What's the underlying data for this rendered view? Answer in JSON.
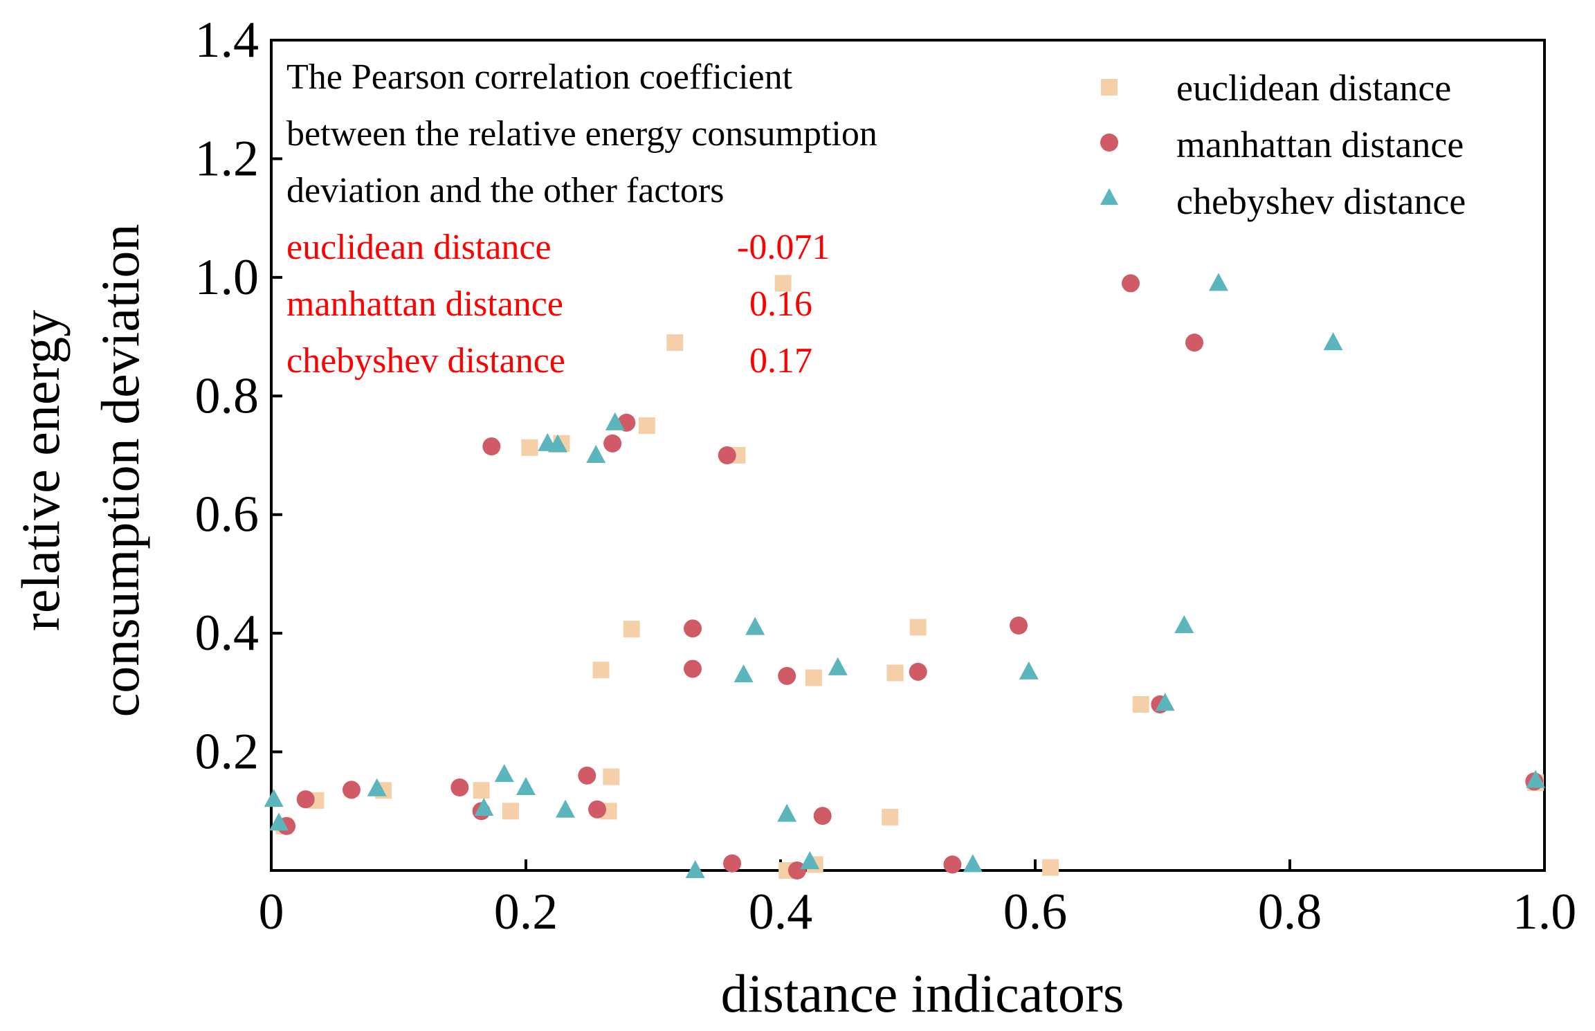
{
  "chart_data": {
    "type": "scatter",
    "title": "",
    "xlabel": "distance indicators",
    "ylabel_lines": [
      "relative energy",
      "consumption deviation"
    ],
    "xlim": [
      0,
      1.0
    ],
    "ylim": [
      0,
      1.4
    ],
    "x_ticks": [
      0,
      0.2,
      0.4,
      0.6,
      0.8,
      1.0
    ],
    "x_tick_labels": [
      "0",
      "0.2",
      "0.4",
      "0.6",
      "0.8",
      "1.0"
    ],
    "y_ticks": [
      0.2,
      0.4,
      0.6,
      0.8,
      1.0,
      1.2,
      1.4
    ],
    "y_tick_labels": [
      "0.2",
      "0.4",
      "0.6",
      "0.8",
      "1.0",
      "1.2",
      "1.4"
    ],
    "grid": false,
    "legend_position": "top-right",
    "series": [
      {
        "name": "euclidean distance",
        "marker": "square",
        "color": "#f5cfa7",
        "points": [
          [
            0.01,
            0.075
          ],
          [
            0.035,
            0.118
          ],
          [
            0.088,
            0.135
          ],
          [
            0.165,
            0.135
          ],
          [
            0.188,
            0.1
          ],
          [
            0.203,
            0.713
          ],
          [
            0.228,
            0.72
          ],
          [
            0.259,
            0.338
          ],
          [
            0.265,
            0.1
          ],
          [
            0.267,
            0.158
          ],
          [
            0.283,
            0.407
          ],
          [
            0.295,
            0.75
          ],
          [
            0.317,
            0.89
          ],
          [
            0.366,
            0.7
          ],
          [
            0.402,
            0.99
          ],
          [
            0.405,
            0.0
          ],
          [
            0.426,
            0.325
          ],
          [
            0.427,
            0.01
          ],
          [
            0.486,
            0.09
          ],
          [
            0.49,
            0.333
          ],
          [
            0.508,
            0.41
          ],
          [
            0.612,
            0.005
          ],
          [
            0.683,
            0.28
          ],
          [
            0.993,
            0.148
          ]
        ]
      },
      {
        "name": "manhattan distance",
        "marker": "circle",
        "color": "#d05b66",
        "points": [
          [
            0.012,
            0.075
          ],
          [
            0.027,
            0.12
          ],
          [
            0.063,
            0.136
          ],
          [
            0.148,
            0.14
          ],
          [
            0.165,
            0.1
          ],
          [
            0.173,
            0.715
          ],
          [
            0.248,
            0.16
          ],
          [
            0.256,
            0.103
          ],
          [
            0.268,
            0.72
          ],
          [
            0.279,
            0.755
          ],
          [
            0.331,
            0.408
          ],
          [
            0.331,
            0.34
          ],
          [
            0.358,
            0.7
          ],
          [
            0.362,
            0.012
          ],
          [
            0.405,
            0.328
          ],
          [
            0.413,
            0.0
          ],
          [
            0.433,
            0.092
          ],
          [
            0.508,
            0.335
          ],
          [
            0.535,
            0.01
          ],
          [
            0.587,
            0.413
          ],
          [
            0.675,
            0.99
          ],
          [
            0.698,
            0.28
          ],
          [
            0.725,
            0.89
          ],
          [
            0.992,
            0.15
          ]
        ]
      },
      {
        "name": "chebyshev distance",
        "marker": "triangle",
        "color": "#5ab5bd",
        "points": [
          [
            0.002,
            0.12
          ],
          [
            0.006,
            0.08
          ],
          [
            0.083,
            0.138
          ],
          [
            0.167,
            0.105
          ],
          [
            0.183,
            0.162
          ],
          [
            0.2,
            0.14
          ],
          [
            0.217,
            0.72
          ],
          [
            0.225,
            0.718
          ],
          [
            0.231,
            0.102
          ],
          [
            0.255,
            0.7
          ],
          [
            0.27,
            0.755
          ],
          [
            0.333,
            0.0
          ],
          [
            0.371,
            0.33
          ],
          [
            0.38,
            0.41
          ],
          [
            0.405,
            0.095
          ],
          [
            0.423,
            0.015
          ],
          [
            0.445,
            0.342
          ],
          [
            0.551,
            0.01
          ],
          [
            0.595,
            0.335
          ],
          [
            0.702,
            0.282
          ],
          [
            0.717,
            0.413
          ],
          [
            0.744,
            0.99
          ],
          [
            0.834,
            0.89
          ],
          [
            0.993,
            0.152
          ]
        ]
      }
    ],
    "annotation": {
      "text_lines": [
        "The Pearson correlation coefficient",
        "between the relative energy consumption",
        "deviation and the other factors"
      ],
      "correlations": [
        {
          "name": "euclidean distance",
          "value": "-0.071"
        },
        {
          "name": "manhattan distance",
          "value": "0.16"
        },
        {
          "name": "chebyshev distance",
          "value": "0.17"
        }
      ]
    }
  }
}
